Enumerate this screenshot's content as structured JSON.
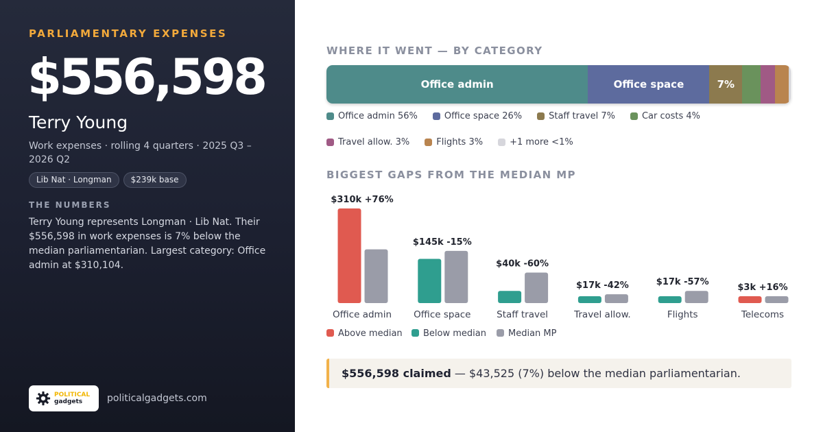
{
  "left": {
    "eyebrow": "PARLIAMENTARY EXPENSES",
    "total": "$556,598",
    "name": "Terry Young",
    "subtitle": "Work expenses · rolling 4 quarters · 2025 Q3 – 2026 Q2",
    "chips": [
      "Lib Nat · Longman",
      "$239k base"
    ],
    "numbers_heading": "THE NUMBERS",
    "numbers_body": "Terry Young represents Longman · Lib Nat. Their $556,598 in work expenses is 7% below the median parliamentarian. Largest category: Office admin at $310,104.",
    "logo": {
      "line1": "POLITICAL",
      "line2": "gadgets",
      "icon": "gear-icon"
    },
    "site": "politicalgadgets.com"
  },
  "category": {
    "heading": "WHERE IT WENT — BY CATEGORY",
    "segments": [
      {
        "name": "Office admin",
        "pct": 56,
        "label": "Office admin",
        "color": "#4e8b8a"
      },
      {
        "name": "Office space",
        "pct": 26,
        "label": "Office space",
        "color": "#5d6b9e"
      },
      {
        "name": "Staff travel",
        "pct": 7,
        "label": "7%",
        "color": "#8c7a4e"
      },
      {
        "name": "Car costs",
        "pct": 4,
        "label": "",
        "color": "#6a925c"
      },
      {
        "name": "Travel allow.",
        "pct": 3,
        "label": "",
        "color": "#a05a85"
      },
      {
        "name": "Flights",
        "pct": 3,
        "label": "",
        "color": "#b9844f"
      },
      {
        "name": "+1 more",
        "pct": 0.4,
        "label": "",
        "color": "#d6d6dc"
      }
    ],
    "legend_row1": [
      {
        "text": "Office admin 56%",
        "color": "#4e8b8a"
      },
      {
        "text": "Office space 26%",
        "color": "#5d6b9e"
      },
      {
        "text": "Staff travel 7%",
        "color": "#8c7a4e"
      },
      {
        "text": "Car costs 4%",
        "color": "#6a925c"
      }
    ],
    "legend_row2": [
      {
        "text": "Travel allow. 3%",
        "color": "#a05a85"
      },
      {
        "text": "Flights 3%",
        "color": "#b9844f"
      },
      {
        "text": "+1 more <1%",
        "color": "#d6d6dc"
      }
    ]
  },
  "gaps": {
    "heading": "BIGGEST GAPS FROM THE MEDIAN MP",
    "legend": [
      {
        "text": "Above median",
        "color": "#e05a50"
      },
      {
        "text": "Below median",
        "color": "#2f9e8f"
      },
      {
        "text": "Median MP",
        "color": "#9a9ca8"
      }
    ]
  },
  "chart_data": {
    "type": "bar",
    "title": "BIGGEST GAPS FROM THE MEDIAN MP",
    "categories": [
      "Office admin",
      "Office space",
      "Staff travel",
      "Travel allow.",
      "Flights",
      "Telecoms"
    ],
    "series": [
      {
        "name": "MP",
        "values": [
          310,
          145,
          40,
          17,
          17,
          3
        ],
        "status": [
          "Above median",
          "Below median",
          "Below median",
          "Below median",
          "Below median",
          "Above median"
        ]
      },
      {
        "name": "Median MP",
        "values": [
          176,
          171,
          100,
          29,
          40,
          2.6
        ]
      }
    ],
    "value_labels": [
      "$310k +76%",
      "$145k -15%",
      "$40k -60%",
      "$17k -42%",
      "$17k -57%",
      "$3k +16%"
    ],
    "colors": {
      "above": "#e05a50",
      "below": "#2f9e8f",
      "median": "#9a9ca8"
    },
    "value_unit": "$k",
    "legend_position": "bottom-left",
    "grid": false
  },
  "callout": {
    "bold": "$556,598 claimed",
    "rest": " — $43,525 (7%) below the median parliamentarian."
  }
}
